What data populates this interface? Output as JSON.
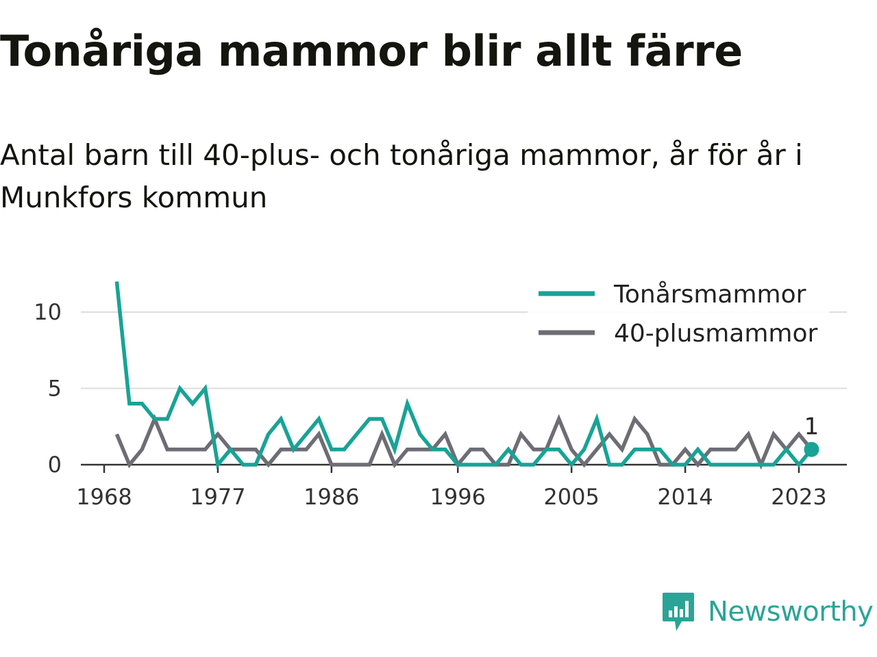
{
  "header": {
    "title": "Tonåriga mammor blir allt färre",
    "subtitle": "Antal barn till 40-plus- och tonåriga mammor, år för år i Munkfors kommun"
  },
  "brand": {
    "name": "Newsworthy",
    "icon": "newsworthy-logo-icon",
    "color": "#2aa497"
  },
  "chart_data": {
    "type": "line",
    "x_ticks": [
      1968,
      1977,
      1986,
      1996,
      2005,
      2014,
      2023
    ],
    "y_ticks": [
      0,
      5,
      10
    ],
    "xlim": [
      1967,
      2028
    ],
    "ylim": [
      0,
      12
    ],
    "grid": "horizontal",
    "legend_position": "top-right",
    "x": [
      1969,
      1970,
      1971,
      1972,
      1973,
      1974,
      1975,
      1976,
      1977,
      1978,
      1979,
      1980,
      1981,
      1982,
      1983,
      1984,
      1985,
      1986,
      1987,
      1988,
      1989,
      1990,
      1991,
      1992,
      1993,
      1994,
      1995,
      1996,
      1997,
      1998,
      1999,
      2000,
      2001,
      2002,
      2003,
      2004,
      2005,
      2006,
      2007,
      2008,
      2009,
      2010,
      2011,
      2012,
      2013,
      2014,
      2015,
      2016,
      2017,
      2018,
      2019,
      2020,
      2021,
      2022,
      2023,
      2024
    ],
    "series": [
      {
        "name": "Tonårsmammor",
        "color": "#18a396",
        "values": [
          12,
          4,
          4,
          3,
          3,
          5,
          4,
          5,
          0,
          1,
          0,
          0,
          2,
          3,
          1,
          2,
          3,
          1,
          1,
          2,
          3,
          3,
          1,
          4,
          2,
          1,
          1,
          0,
          0,
          0,
          0,
          1,
          0,
          0,
          1,
          1,
          0,
          1,
          3,
          0,
          0,
          1,
          1,
          1,
          0,
          0,
          1,
          0,
          0,
          0,
          0,
          0,
          0,
          1,
          0,
          1
        ]
      },
      {
        "name": "40-plusmammor",
        "color": "#6e6d75",
        "values": [
          2,
          0,
          1,
          3,
          1,
          1,
          1,
          1,
          2,
          1,
          1,
          1,
          0,
          1,
          1,
          1,
          2,
          0,
          0,
          0,
          0,
          2,
          0,
          1,
          1,
          1,
          2,
          0,
          1,
          1,
          0,
          0,
          2,
          1,
          1,
          3,
          1,
          0,
          1,
          2,
          1,
          3,
          2,
          0,
          0,
          1,
          0,
          1,
          1,
          1,
          2,
          0,
          2,
          1,
          2,
          1
        ]
      }
    ],
    "annotations": [
      {
        "series": "Tonårsmammor",
        "x": 2024,
        "y": 1,
        "label": "1"
      }
    ]
  }
}
